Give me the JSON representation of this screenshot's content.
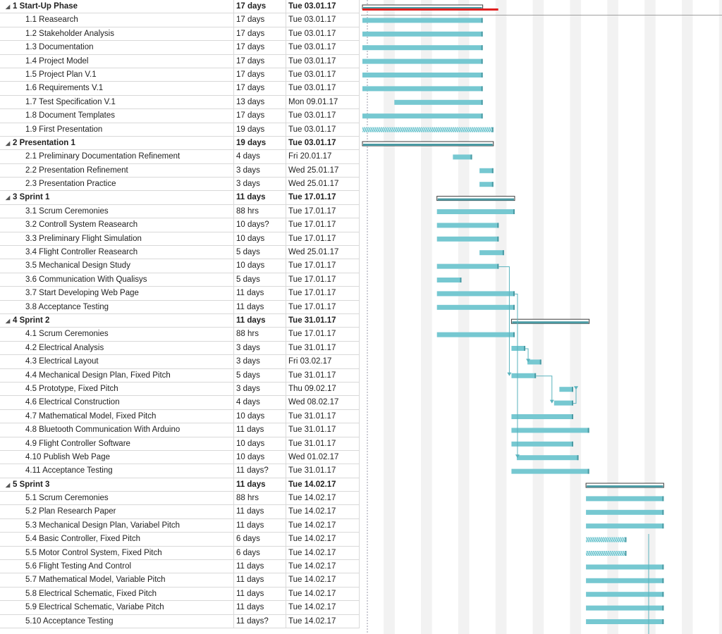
{
  "colors": {
    "task_bar": "#76c8d1",
    "summary_bar": "#4a9aa3",
    "critical_bar": "#e02020",
    "weekend_shade": "#f2f2f2",
    "dependency_line": "#5ab3bd"
  },
  "tasks": [
    {
      "name": "1 Start-Up Phase",
      "duration": "17 days",
      "start": "Tue 03.01.17",
      "summary": true
    },
    {
      "name": "1.1 Reasearch",
      "duration": "17 days",
      "start": "Tue 03.01.17"
    },
    {
      "name": "1.2 Stakeholder Analysis",
      "duration": "17 days",
      "start": "Tue 03.01.17"
    },
    {
      "name": "1.3 Documentation",
      "duration": "17 days",
      "start": "Tue 03.01.17"
    },
    {
      "name": "1.4 Project Model",
      "duration": "17 days",
      "start": "Tue 03.01.17"
    },
    {
      "name": "1.5 Project Plan V.1",
      "duration": "17 days",
      "start": "Tue 03.01.17"
    },
    {
      "name": "1.6 Requirements V.1",
      "duration": "17 days",
      "start": "Tue 03.01.17"
    },
    {
      "name": "1.7 Test Specification V.1",
      "duration": "13 days",
      "start": "Mon 09.01.17"
    },
    {
      "name": "1.8 Document Templates",
      "duration": "17 days",
      "start": "Tue 03.01.17"
    },
    {
      "name": "1.9 First Presentation",
      "duration": "19 days",
      "start": "Tue 03.01.17"
    },
    {
      "name": "2 Presentation 1",
      "duration": "19 days",
      "start": "Tue 03.01.17",
      "summary": true
    },
    {
      "name": "2.1 Preliminary Documentation Refinement",
      "duration": "4 days",
      "start": "Fri 20.01.17"
    },
    {
      "name": "2.2 Presentation Refinement",
      "duration": "3 days",
      "start": "Wed 25.01.17"
    },
    {
      "name": "2.3 Presentation Practice",
      "duration": "3 days",
      "start": "Wed 25.01.17"
    },
    {
      "name": "3 Sprint 1",
      "duration": "11 days",
      "start": "Tue 17.01.17",
      "summary": true
    },
    {
      "name": "3.1 Scrum Ceremonies",
      "duration": "88 hrs",
      "start": "Tue 17.01.17"
    },
    {
      "name": "3.2 Controll System Reasearch",
      "duration": "10 days?",
      "start": "Tue 17.01.17"
    },
    {
      "name": "3.3 Preliminary Flight Simulation",
      "duration": "10 days",
      "start": "Tue 17.01.17"
    },
    {
      "name": "3.4 Flight Controller Reasearch",
      "duration": "5 days",
      "start": "Wed 25.01.17"
    },
    {
      "name": "3.5 Mechanical Design Study",
      "duration": "10 days",
      "start": "Tue 17.01.17"
    },
    {
      "name": "3.6 Communication With Qualisys",
      "duration": "5 days",
      "start": "Tue 17.01.17"
    },
    {
      "name": "3.7 Start Developing Web Page",
      "duration": "11 days",
      "start": "Tue 17.01.17"
    },
    {
      "name": "3.8 Acceptance Testing",
      "duration": "11 days",
      "start": "Tue 17.01.17"
    },
    {
      "name": "4 Sprint 2",
      "duration": "11 days",
      "start": "Tue 31.01.17",
      "summary": true
    },
    {
      "name": "4.1 Scrum Ceremonies",
      "duration": "88 hrs",
      "start": "Tue 17.01.17"
    },
    {
      "name": "4.2 Electrical Analysis",
      "duration": "3 days",
      "start": "Tue 31.01.17"
    },
    {
      "name": "4.3 Electrical Layout",
      "duration": "3 days",
      "start": "Fri 03.02.17"
    },
    {
      "name": "4.4 Mechanical Design Plan, Fixed Pitch",
      "duration": "5 days",
      "start": "Tue 31.01.17"
    },
    {
      "name": "4.5 Prototype, Fixed Pitch",
      "duration": "3 days",
      "start": "Thu 09.02.17"
    },
    {
      "name": "4.6 Electrical Construction",
      "duration": "4 days",
      "start": "Wed 08.02.17"
    },
    {
      "name": "4.7 Mathematical Model, Fixed Pitch",
      "duration": "10 days",
      "start": "Tue 31.01.17"
    },
    {
      "name": "4.8 Bluetooth Communication With Arduino",
      "duration": "11 days",
      "start": "Tue 31.01.17"
    },
    {
      "name": "4.9 Flight Controller Software",
      "duration": "10 days",
      "start": "Tue 31.01.17"
    },
    {
      "name": "4.10 Publish Web Page",
      "duration": "10 days",
      "start": "Wed 01.02.17"
    },
    {
      "name": "4.11 Acceptance Testing",
      "duration": "11 days?",
      "start": "Tue 31.01.17"
    },
    {
      "name": "5 Sprint 3",
      "duration": "11 days",
      "start": "Tue 14.02.17",
      "summary": true
    },
    {
      "name": "5.1 Scrum Ceremonies",
      "duration": "88 hrs",
      "start": "Tue 14.02.17"
    },
    {
      "name": "5.2 Plan Research Paper",
      "duration": "11 days",
      "start": "Tue 14.02.17"
    },
    {
      "name": "5.3 Mechanical Design Plan, Variabel Pitch",
      "duration": "11 days",
      "start": "Tue 14.02.17"
    },
    {
      "name": "5.4 Basic Controller, Fixed Pitch",
      "duration": "6 days",
      "start": "Tue 14.02.17"
    },
    {
      "name": "5.5 Motor Control System, Fixed Pitch",
      "duration": "6 days",
      "start": "Tue 14.02.17"
    },
    {
      "name": "5.6 Flight Testing And Control",
      "duration": "11 days",
      "start": "Tue 14.02.17"
    },
    {
      "name": "5.7 Mathematical Model, Variable Pitch",
      "duration": "11 days",
      "start": "Tue 14.02.17"
    },
    {
      "name": "5.8 Electrical Schematic, Fixed Pitch",
      "duration": "11 days",
      "start": "Tue 14.02.17"
    },
    {
      "name": "5.9 Electrical Schematic, Variabe Pitch",
      "duration": "11 days",
      "start": "Tue 14.02.17"
    },
    {
      "name": "5.10 Acceptance Testing",
      "duration": "11 days?",
      "start": "Tue 14.02.17"
    }
  ]
}
